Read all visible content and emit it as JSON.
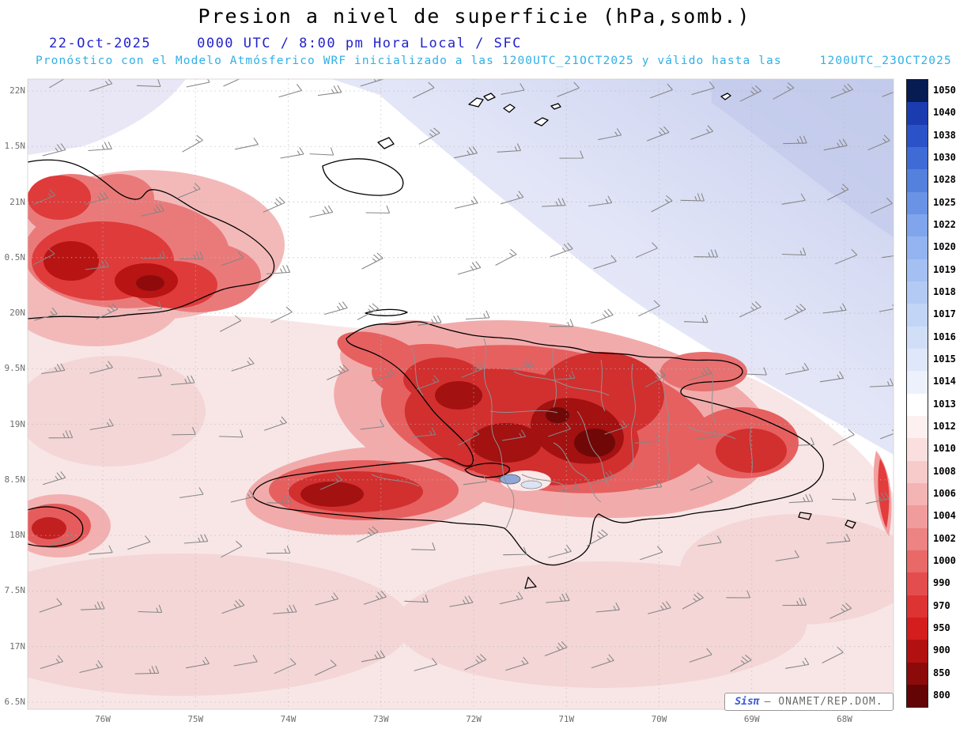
{
  "title": "Presion a nivel de superficie (hPa,somb.)",
  "header": {
    "date": "22-Oct-2025",
    "time": "0000 UTC / 8:00 pm Hora Local / SFC",
    "forecast": "Pronóstico con el Modelo Atmósferico WRF inicializado a las 1200UTC_21OCT2025 y válido hasta las",
    "valid": "1200UTC_23OCT2025"
  },
  "map": {
    "lat_labels": [
      "22N",
      "1.5N",
      "21N",
      "0.5N",
      "20N",
      "9.5N",
      "19N",
      "8.5N",
      "18N",
      "7.5N",
      "17N",
      "6.5N"
    ],
    "lon_labels": [
      "76W",
      "75W",
      "74W",
      "73W",
      "72W",
      "71W",
      "70W",
      "69W",
      "68W"
    ],
    "wind": {
      "rows": 11,
      "cols": 19,
      "angle_deg": -14
    }
  },
  "colorbar": {
    "values": [
      1050,
      1040,
      1038,
      1030,
      1028,
      1025,
      1022,
      1020,
      1019,
      1018,
      1017,
      1016,
      1015,
      1014,
      1013,
      1012,
      1010,
      1008,
      1006,
      1004,
      1002,
      1000,
      990,
      970,
      950,
      900,
      850,
      800
    ],
    "colors": [
      "#061c52",
      "#1b3cb0",
      "#2b52c8",
      "#3e6bd6",
      "#5480de",
      "#6a93e6",
      "#80a5ec",
      "#93b4f0",
      "#a4c0f2",
      "#b3cbf4",
      "#c2d5f6",
      "#d1def8",
      "#dfe7fa",
      "#edf1fc",
      "#ffffff",
      "#fdf0f0",
      "#fbdfdf",
      "#f8cbcb",
      "#f5b4b4",
      "#f19c9c",
      "#ed8383",
      "#e96868",
      "#e44d4d",
      "#de3333",
      "#d41d1d",
      "#b31111",
      "#8c0a0a",
      "#640404"
    ]
  },
  "branding": {
    "sispi": "Sisπ",
    "org": "— ONAMET/REP.DOM."
  }
}
